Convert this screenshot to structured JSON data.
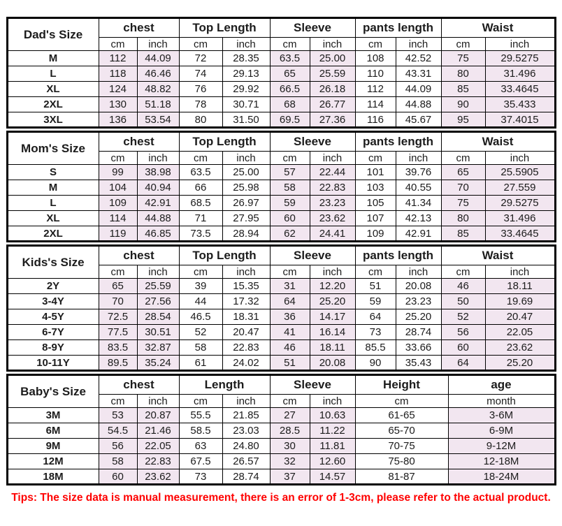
{
  "colors": {
    "row_shade": "#F2E6F0",
    "border": "#000000",
    "text": "#1C1C1C",
    "tips": "#FF0000"
  },
  "tips": "Tips: The size data is manual measurement, there is an error of 1-3cm, please refer to the actual product.",
  "chart_data": [
    {
      "type": "table",
      "name": "dads",
      "corner_label": "Dad's Size",
      "groups": [
        {
          "label": "chest",
          "subcols": [
            "cm",
            "inch"
          ],
          "shaded": true
        },
        {
          "label": "Top Length",
          "subcols": [
            "cm",
            "inch"
          ],
          "shaded": false
        },
        {
          "label": "Sleeve",
          "subcols": [
            "cm",
            "inch"
          ],
          "shaded": true
        },
        {
          "label": "pants length",
          "subcols": [
            "cm",
            "inch"
          ],
          "shaded": false
        },
        {
          "label": "Waist",
          "subcols": [
            "cm",
            "inch"
          ],
          "shaded": true
        }
      ],
      "rows": [
        {
          "label": "M",
          "values": [
            "112",
            "44.09",
            "72",
            "28.35",
            "63.5",
            "25.00",
            "108",
            "42.52",
            "75",
            "29.5275"
          ]
        },
        {
          "label": "L",
          "values": [
            "118",
            "46.46",
            "74",
            "29.13",
            "65",
            "25.59",
            "110",
            "43.31",
            "80",
            "31.496"
          ]
        },
        {
          "label": "XL",
          "values": [
            "124",
            "48.82",
            "76",
            "29.92",
            "66.5",
            "26.18",
            "112",
            "44.09",
            "85",
            "33.4645"
          ]
        },
        {
          "label": "2XL",
          "values": [
            "130",
            "51.18",
            "78",
            "30.71",
            "68",
            "26.77",
            "114",
            "44.88",
            "90",
            "35.433"
          ]
        },
        {
          "label": "3XL",
          "values": [
            "136",
            "53.54",
            "80",
            "31.50",
            "69.5",
            "27.36",
            "116",
            "45.67",
            "95",
            "37.4015"
          ]
        }
      ]
    },
    {
      "type": "table",
      "name": "moms",
      "corner_label": "Mom's Size",
      "groups": [
        {
          "label": "chest",
          "subcols": [
            "cm",
            "inch"
          ],
          "shaded": true
        },
        {
          "label": "Top Length",
          "subcols": [
            "cm",
            "inch"
          ],
          "shaded": false
        },
        {
          "label": "Sleeve",
          "subcols": [
            "cm",
            "inch"
          ],
          "shaded": true
        },
        {
          "label": "pants length",
          "subcols": [
            "cm",
            "inch"
          ],
          "shaded": false
        },
        {
          "label": "Waist",
          "subcols": [
            "cm",
            "inch"
          ],
          "shaded": true
        }
      ],
      "rows": [
        {
          "label": "S",
          "values": [
            "99",
            "38.98",
            "63.5",
            "25.00",
            "57",
            "22.44",
            "101",
            "39.76",
            "65",
            "25.5905"
          ]
        },
        {
          "label": "M",
          "values": [
            "104",
            "40.94",
            "66",
            "25.98",
            "58",
            "22.83",
            "103",
            "40.55",
            "70",
            "27.559"
          ]
        },
        {
          "label": "L",
          "values": [
            "109",
            "42.91",
            "68.5",
            "26.97",
            "59",
            "23.23",
            "105",
            "41.34",
            "75",
            "29.5275"
          ]
        },
        {
          "label": "XL",
          "values": [
            "114",
            "44.88",
            "71",
            "27.95",
            "60",
            "23.62",
            "107",
            "42.13",
            "80",
            "31.496"
          ]
        },
        {
          "label": "2XL",
          "values": [
            "119",
            "46.85",
            "73.5",
            "28.94",
            "62",
            "24.41",
            "109",
            "42.91",
            "85",
            "33.4645"
          ]
        }
      ]
    },
    {
      "type": "table",
      "name": "kids",
      "corner_label": "Kids's Size",
      "groups": [
        {
          "label": "chest",
          "subcols": [
            "cm",
            "inch"
          ],
          "shaded": true
        },
        {
          "label": "Top Length",
          "subcols": [
            "cm",
            "inch"
          ],
          "shaded": false
        },
        {
          "label": "Sleeve",
          "subcols": [
            "cm",
            "inch"
          ],
          "shaded": true
        },
        {
          "label": "pants length",
          "subcols": [
            "cm",
            "inch"
          ],
          "shaded": false
        },
        {
          "label": "Waist",
          "subcols": [
            "cm",
            "inch"
          ],
          "shaded": true
        }
      ],
      "rows": [
        {
          "label": "2Y",
          "values": [
            "65",
            "25.59",
            "39",
            "15.35",
            "31",
            "12.20",
            "51",
            "20.08",
            "46",
            "18.11"
          ]
        },
        {
          "label": "3-4Y",
          "values": [
            "70",
            "27.56",
            "44",
            "17.32",
            "64",
            "25.20",
            "59",
            "23.23",
            "50",
            "19.69"
          ]
        },
        {
          "label": "4-5Y",
          "values": [
            "72.5",
            "28.54",
            "46.5",
            "18.31",
            "36",
            "14.17",
            "64",
            "25.20",
            "52",
            "20.47"
          ]
        },
        {
          "label": "6-7Y",
          "values": [
            "77.5",
            "30.51",
            "52",
            "20.47",
            "41",
            "16.14",
            "73",
            "28.74",
            "56",
            "22.05"
          ]
        },
        {
          "label": "8-9Y",
          "values": [
            "83.5",
            "32.87",
            "58",
            "22.83",
            "46",
            "18.11",
            "85.5",
            "33.66",
            "60",
            "23.62"
          ]
        },
        {
          "label": "10-11Y",
          "values": [
            "89.5",
            "35.24",
            "61",
            "24.02",
            "51",
            "20.08",
            "90",
            "35.43",
            "64",
            "25.20"
          ]
        }
      ]
    },
    {
      "type": "table",
      "name": "babys",
      "corner_label": "Baby's Size",
      "groups": [
        {
          "label": "chest",
          "subcols": [
            "cm",
            "inch"
          ],
          "shaded": true
        },
        {
          "label": "Length",
          "subcols": [
            "cm",
            "inch"
          ],
          "shaded": false
        },
        {
          "label": "Sleeve",
          "subcols": [
            "cm",
            "inch"
          ],
          "shaded": true
        },
        {
          "label": "Height",
          "subcols": [
            "cm"
          ],
          "shaded": false
        },
        {
          "label": "age",
          "subcols": [
            "month"
          ],
          "shaded": true
        }
      ],
      "rows": [
        {
          "label": "3M",
          "values": [
            "53",
            "20.87",
            "55.5",
            "21.85",
            "27",
            "10.63",
            "61-65",
            "3-6M"
          ]
        },
        {
          "label": "6M",
          "values": [
            "54.5",
            "21.46",
            "58.5",
            "23.03",
            "28.5",
            "11.22",
            "65-70",
            "6-9M"
          ]
        },
        {
          "label": "9M",
          "values": [
            "56",
            "22.05",
            "63",
            "24.80",
            "30",
            "11.81",
            "70-75",
            "9-12M"
          ]
        },
        {
          "label": "12M",
          "values": [
            "58",
            "22.83",
            "67.5",
            "26.57",
            "32",
            "12.60",
            "75-80",
            "12-18M"
          ]
        },
        {
          "label": "18M",
          "values": [
            "60",
            "23.62",
            "73",
            "28.74",
            "37",
            "14.57",
            "81-87",
            "18-24M"
          ]
        }
      ]
    }
  ]
}
